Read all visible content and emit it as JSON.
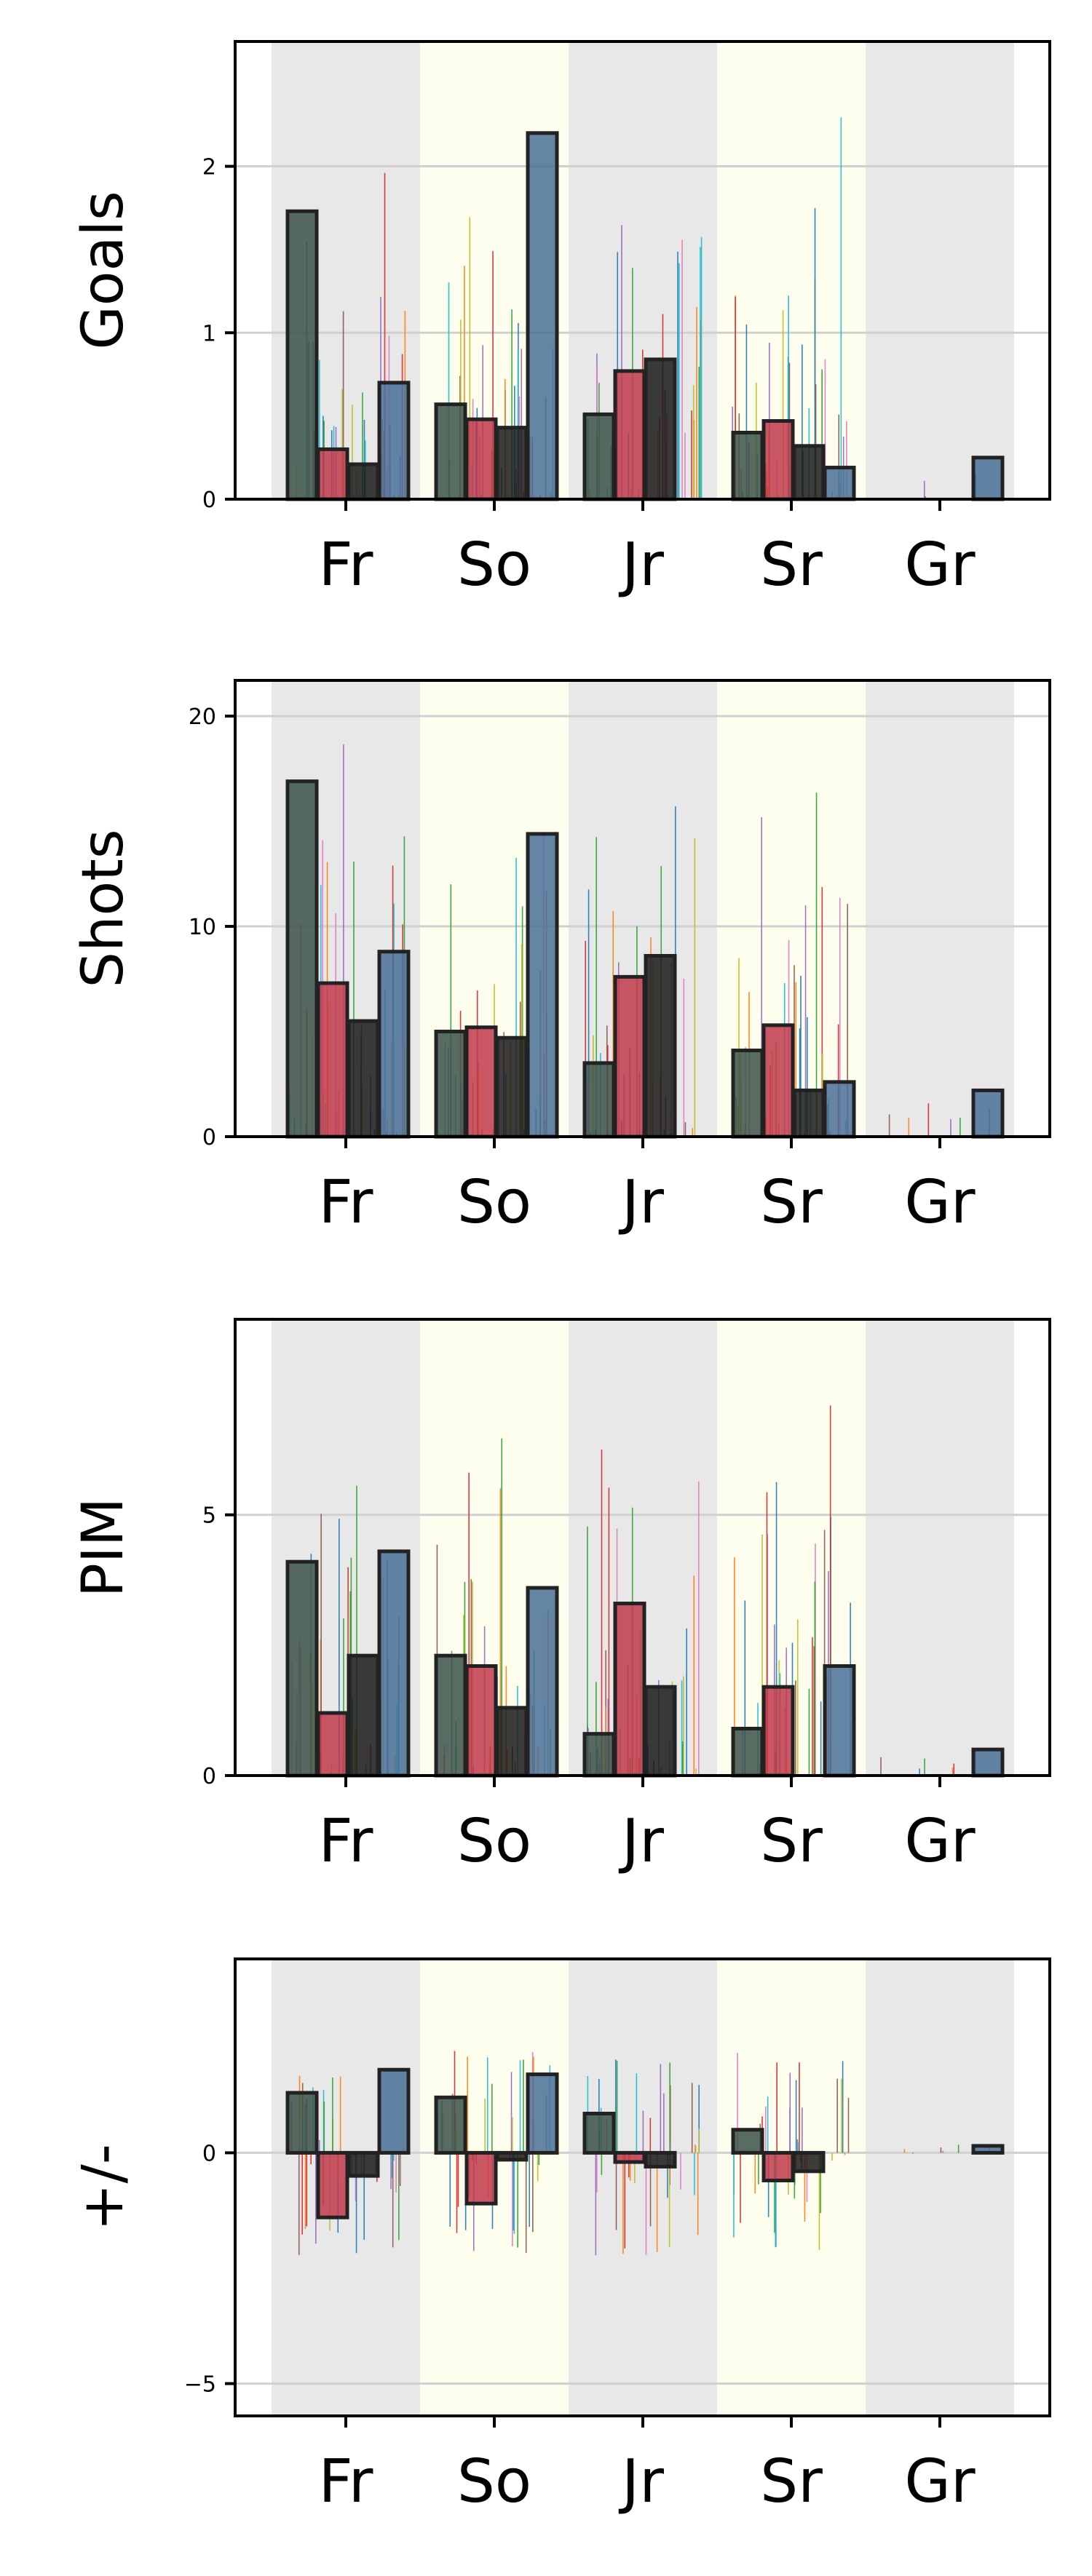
{
  "chart_data": [
    {
      "type": "bar",
      "ylabel": "Goals",
      "xlabel": "",
      "categories": [
        "Fr",
        "So",
        "Jr",
        "Sr",
        "Gr"
      ],
      "yticks": [
        0,
        1,
        2
      ],
      "ylim": [
        0,
        2.75
      ],
      "grid": "horizontal",
      "series": [
        {
          "color": "#3b5249",
          "values": [
            1.73,
            0.57,
            0.51,
            0.4,
            0.0
          ]
        },
        {
          "color": "#c0394b",
          "values": [
            0.3,
            0.48,
            0.77,
            0.47,
            0.0
          ]
        },
        {
          "color": "#1a1a1a",
          "values": [
            0.21,
            0.43,
            0.84,
            0.32,
            0.0
          ]
        },
        {
          "color": "#4a7096",
          "values": [
            0.7,
            2.2,
            0.0,
            0.19,
            0.25
          ]
        }
      ]
    },
    {
      "type": "bar",
      "ylabel": "Shots",
      "xlabel": "",
      "categories": [
        "Fr",
        "So",
        "Jr",
        "Sr",
        "Gr"
      ],
      "yticks": [
        0,
        10,
        20
      ],
      "ylim": [
        0,
        21.7
      ],
      "grid": "horizontal",
      "series": [
        {
          "color": "#3b5249",
          "values": [
            16.9,
            5.0,
            3.5,
            4.1,
            0.0
          ]
        },
        {
          "color": "#c0394b",
          "values": [
            7.3,
            5.2,
            7.6,
            5.3,
            0.0
          ]
        },
        {
          "color": "#1a1a1a",
          "values": [
            5.5,
            4.7,
            8.6,
            2.2,
            0.0
          ]
        },
        {
          "color": "#4a7096",
          "values": [
            8.8,
            14.4,
            0.0,
            2.6,
            2.2
          ]
        }
      ]
    },
    {
      "type": "bar",
      "ylabel": "PIM",
      "xlabel": "",
      "categories": [
        "Fr",
        "So",
        "Jr",
        "Sr",
        "Gr"
      ],
      "yticks": [
        0,
        5
      ],
      "ylim": [
        0,
        8.75
      ],
      "grid": "horizontal",
      "series": [
        {
          "color": "#3b5249",
          "values": [
            4.1,
            2.3,
            0.8,
            0.9,
            0.0
          ]
        },
        {
          "color": "#c0394b",
          "values": [
            1.2,
            2.1,
            3.3,
            1.7,
            0.0
          ]
        },
        {
          "color": "#1a1a1a",
          "values": [
            2.3,
            1.3,
            1.7,
            0.0,
            0.0
          ]
        },
        {
          "color": "#4a7096",
          "values": [
            4.3,
            3.6,
            0.0,
            2.1,
            0.5
          ]
        }
      ]
    },
    {
      "type": "bar",
      "ylabel": "+/-",
      "xlabel": "",
      "categories": [
        "Fr",
        "So",
        "Jr",
        "Sr",
        "Gr"
      ],
      "yticks": [
        -5,
        0
      ],
      "ylim": [
        -5.7,
        4.2
      ],
      "grid": "horizontal",
      "series": [
        {
          "color": "#3b5249",
          "values": [
            1.3,
            1.2,
            0.85,
            0.5,
            0.0
          ]
        },
        {
          "color": "#c0394b",
          "values": [
            -1.4,
            -1.1,
            -0.2,
            -0.6,
            0.0
          ]
        },
        {
          "color": "#1a1a1a",
          "values": [
            -0.5,
            -0.15,
            -0.3,
            -0.4,
            0.0
          ]
        },
        {
          "color": "#4a7096",
          "values": [
            1.8,
            1.7,
            0.0,
            0.0,
            0.15
          ]
        }
      ]
    }
  ],
  "colors": {
    "band_grey": "#e8e8e8",
    "band_yellow": "#fefeee",
    "grid": "#d0d0d0",
    "bar_edge": "#222222",
    "thin_line_palette": [
      "#1f77b4",
      "#ff7f0e",
      "#2ca02c",
      "#d62728",
      "#9467bd",
      "#8c564b",
      "#e377c2",
      "#bcbd22",
      "#17becf"
    ]
  }
}
